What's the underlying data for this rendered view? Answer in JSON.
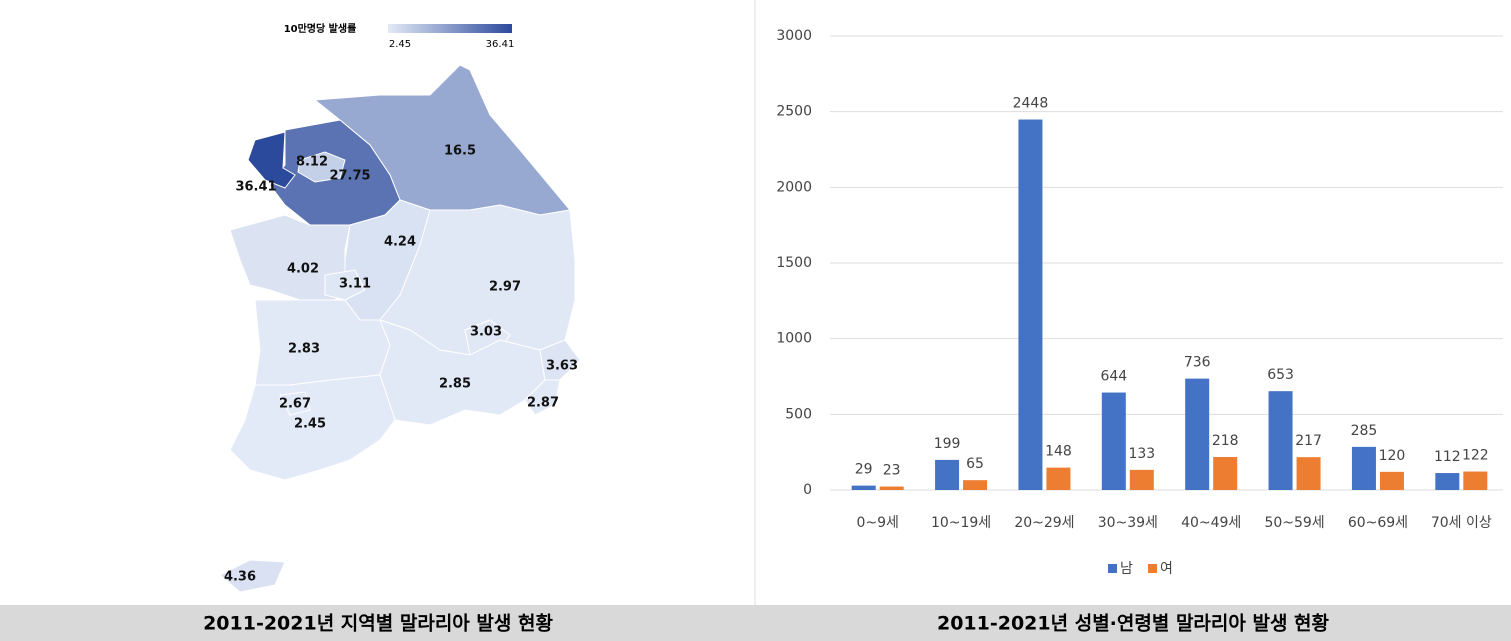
{
  "chart_data": [
    {
      "type": "choropleth",
      "legend_title": "10만명당 발생률",
      "legend_min": 2.45,
      "legend_max": 36.41,
      "color_min": "#e3eaf7",
      "color_max": "#2c4a9c",
      "values": [
        36.41,
        8.12,
        27.75,
        16.5,
        4.24,
        4.02,
        3.11,
        2.97,
        3.03,
        2.83,
        3.63,
        2.85,
        2.87,
        2.67,
        2.45,
        4.36
      ]
    },
    {
      "type": "bar",
      "categories": [
        "0~9세",
        "10~19세",
        "20~29세",
        "30~39세",
        "40~49세",
        "50~59세",
        "60~69세",
        "70세 이상"
      ],
      "series": [
        {
          "name": "남",
          "color": "#4472c4",
          "values": [
            29,
            199,
            2448,
            644,
            736,
            653,
            285,
            112
          ]
        },
        {
          "name": "여",
          "color": "#ed7d31",
          "values": [
            23,
            65,
            148,
            133,
            218,
            217,
            120,
            122
          ]
        }
      ],
      "ylim": [
        0,
        3000
      ],
      "yticks": [
        0,
        500,
        1000,
        1500,
        2000,
        2500,
        3000
      ],
      "grid": true,
      "legend": "bottom"
    }
  ],
  "captions": [
    "2011-2021년 지역별 말라리아 발생 현황",
    "2011-2021년 성별·연령별 말라리아 발생 현황"
  ]
}
